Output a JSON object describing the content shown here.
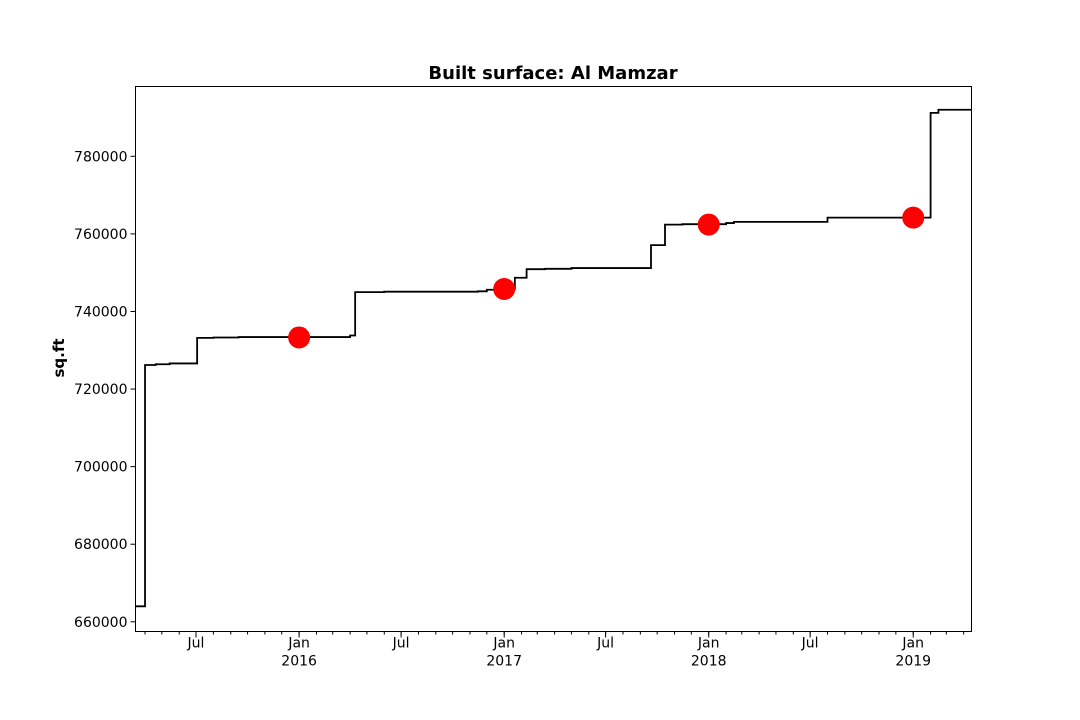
{
  "chart_data": {
    "type": "line",
    "title": "Built surface: Al Mamzar",
    "xlabel": "",
    "ylabel": "sq.ft",
    "x_axis": {
      "type": "date",
      "range": [
        "2015-03-15",
        "2019-04-15"
      ],
      "major_ticks": [
        {
          "date": "2015-07-01",
          "label": "Jul",
          "sublabel": ""
        },
        {
          "date": "2016-01-01",
          "label": "Jan",
          "sublabel": "2016"
        },
        {
          "date": "2016-07-01",
          "label": "Jul",
          "sublabel": ""
        },
        {
          "date": "2017-01-01",
          "label": "Jan",
          "sublabel": "2017"
        },
        {
          "date": "2017-07-01",
          "label": "Jul",
          "sublabel": ""
        },
        {
          "date": "2018-01-01",
          "label": "Jan",
          "sublabel": "2018"
        },
        {
          "date": "2018-07-01",
          "label": "Jul",
          "sublabel": ""
        },
        {
          "date": "2019-01-01",
          "label": "Jan",
          "sublabel": "2019"
        }
      ],
      "minor_ticks": "monthly"
    },
    "y_axis": {
      "range": [
        657500,
        798000
      ],
      "ticks": [
        660000,
        680000,
        700000,
        720000,
        740000,
        760000,
        780000
      ]
    },
    "grid": false,
    "legend": "none",
    "series": [
      {
        "style": "step",
        "color": "#000000",
        "points": [
          {
            "x": "2015-03-15",
            "y": 664000
          },
          {
            "x": "2015-04-01",
            "y": 726200
          },
          {
            "x": "2015-04-20",
            "y": 726400
          },
          {
            "x": "2015-05-15",
            "y": 726600
          },
          {
            "x": "2015-07-03",
            "y": 733200
          },
          {
            "x": "2015-08-01",
            "y": 733300
          },
          {
            "x": "2015-09-15",
            "y": 733400
          },
          {
            "x": "2016-04-01",
            "y": 733800
          },
          {
            "x": "2016-04-10",
            "y": 745000
          },
          {
            "x": "2016-06-01",
            "y": 745100
          },
          {
            "x": "2016-11-15",
            "y": 745200
          },
          {
            "x": "2016-12-01",
            "y": 745600
          },
          {
            "x": "2016-12-20",
            "y": 745800
          },
          {
            "x": "2017-01-20",
            "y": 748700
          },
          {
            "x": "2017-02-10",
            "y": 750900
          },
          {
            "x": "2017-03-15",
            "y": 751000
          },
          {
            "x": "2017-05-01",
            "y": 751200
          },
          {
            "x": "2017-09-20",
            "y": 757100
          },
          {
            "x": "2017-10-15",
            "y": 762400
          },
          {
            "x": "2017-11-15",
            "y": 762500
          },
          {
            "x": "2018-02-01",
            "y": 762800
          },
          {
            "x": "2018-02-15",
            "y": 763100
          },
          {
            "x": "2018-08-01",
            "y": 764200
          },
          {
            "x": "2019-01-25",
            "y": 764200
          },
          {
            "x": "2019-02-01",
            "y": 791200
          },
          {
            "x": "2019-02-15",
            "y": 792000
          },
          {
            "x": "2019-04-15",
            "y": 792000
          }
        ]
      },
      {
        "style": "scatter",
        "color": "#ff0000",
        "points": [
          {
            "x": "2016-01-01",
            "y": 733300
          },
          {
            "x": "2017-01-01",
            "y": 745800
          },
          {
            "x": "2018-01-01",
            "y": 762400
          },
          {
            "x": "2019-01-01",
            "y": 764200
          }
        ]
      }
    ]
  }
}
